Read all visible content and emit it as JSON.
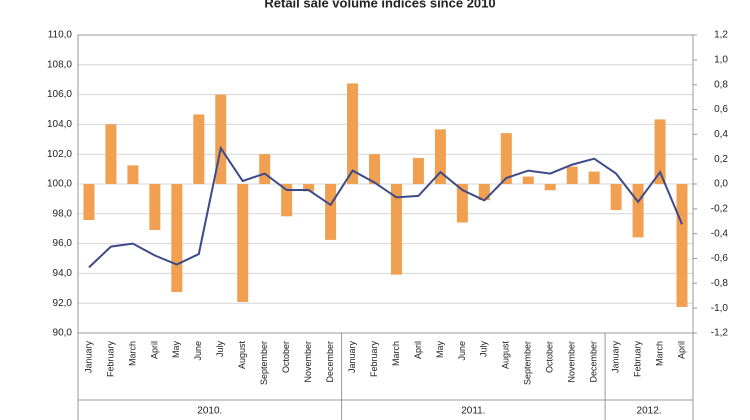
{
  "chart_data": {
    "type": "bar-line",
    "title": "Retail sale volume indices since 2010",
    "categories": [
      "January",
      "February",
      "March",
      "April",
      "May",
      "June",
      "July",
      "August",
      "September",
      "October",
      "November",
      "December",
      "January",
      "February",
      "March",
      "April",
      "May",
      "June",
      "July",
      "August",
      "September",
      "October",
      "November",
      "December",
      "January",
      "February",
      "March",
      "April"
    ],
    "groups": [
      "2010.",
      "2011.",
      "2012."
    ],
    "series": [
      {
        "type": "bar",
        "axis": "y2",
        "color": "#f0a050",
        "values": [
          -0.29,
          0.48,
          0.15,
          -0.37,
          -0.87,
          0.56,
          0.72,
          -0.95,
          0.24,
          -0.26,
          -0.06,
          -0.45,
          0.81,
          0.24,
          -0.73,
          0.21,
          0.44,
          -0.31,
          -0.13,
          0.41,
          0.06,
          -0.05,
          0.14,
          0.1,
          -0.21,
          -0.43,
          0.52,
          -0.99
        ]
      },
      {
        "type": "line",
        "axis": "y",
        "color": "#3d4a8a",
        "values": [
          94.4,
          95.8,
          96.0,
          95.2,
          94.6,
          95.3,
          102.4,
          100.2,
          100.7,
          99.6,
          99.6,
          98.6,
          100.9,
          100.1,
          99.1,
          99.2,
          100.8,
          99.6,
          98.9,
          100.4,
          100.9,
          100.7,
          101.3,
          101.7,
          100.7,
          98.8,
          100.8,
          97.3
        ]
      }
    ],
    "ylim": [
      90,
      110
    ],
    "yticks": [
      {
        "value": 90,
        "label": "90,0"
      },
      {
        "value": 92,
        "label": "92,0"
      },
      {
        "value": 94,
        "label": "94,0"
      },
      {
        "value": 96,
        "label": "96,0"
      },
      {
        "value": 98,
        "label": "98,0"
      },
      {
        "value": 100,
        "label": "100,0"
      },
      {
        "value": 102,
        "label": "102,0"
      },
      {
        "value": 104,
        "label": "104,0"
      },
      {
        "value": 106,
        "label": "106,0"
      },
      {
        "value": 108,
        "label": "108,0"
      },
      {
        "value": 110,
        "label": "110,0"
      }
    ],
    "y2lim": [
      -1.2,
      1.2
    ],
    "y2ticks": [
      {
        "value": -1.2,
        "label": "-1,2"
      },
      {
        "value": -1,
        "label": "-1,0"
      },
      {
        "value": -0.8,
        "label": "-0,8"
      },
      {
        "value": -0.6,
        "label": "-0,6"
      },
      {
        "value": -0.4,
        "label": "-0,4"
      },
      {
        "value": -0.2,
        "label": "-0,2"
      },
      {
        "value": 0,
        "label": "0,0"
      },
      {
        "value": 0.2,
        "label": "0,2"
      },
      {
        "value": 0.4,
        "label": "0,4"
      },
      {
        "value": 0.6,
        "label": "0,6"
      },
      {
        "value": 0.8,
        "label": "0,8"
      },
      {
        "value": 1,
        "label": "1,0"
      },
      {
        "value": 1.2,
        "label": "1,2"
      }
    ],
    "grid": true
  }
}
